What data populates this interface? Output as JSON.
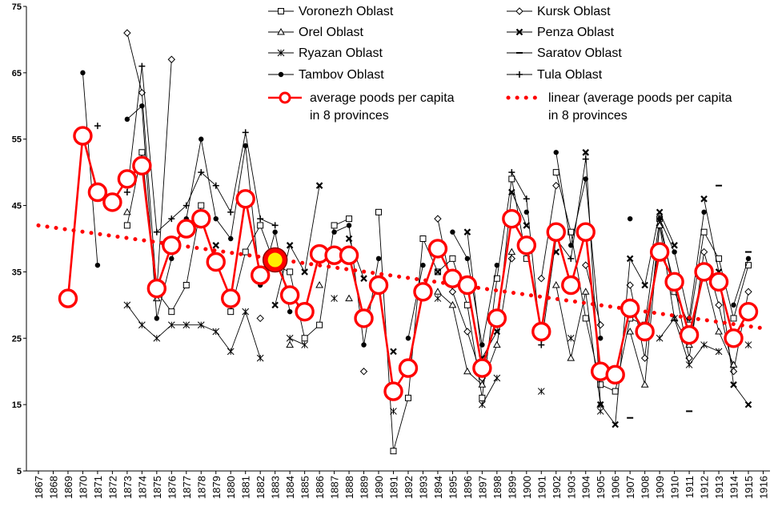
{
  "chart_data": {
    "type": "line",
    "title": "",
    "xlabel": "",
    "ylabel": "",
    "ylim": [
      5,
      75
    ],
    "yticks": [
      5,
      15,
      25,
      35,
      45,
      55,
      65,
      75
    ],
    "grid": false,
    "legend_position": "top",
    "x": [
      1867,
      1868,
      1869,
      1870,
      1871,
      1872,
      1873,
      1874,
      1875,
      1876,
      1877,
      1878,
      1879,
      1880,
      1881,
      1882,
      1883,
      1884,
      1885,
      1886,
      1887,
      1888,
      1889,
      1890,
      1891,
      1892,
      1893,
      1894,
      1895,
      1896,
      1897,
      1898,
      1899,
      1900,
      1901,
      1902,
      1903,
      1904,
      1905,
      1906,
      1907,
      1908,
      1909,
      1910,
      1911,
      1912,
      1913,
      1914,
      1915,
      1916
    ],
    "x_tick_labels": [
      "1867",
      "1868",
      "1869",
      "1870",
      "1871",
      "1872",
      "1873",
      "1874",
      "1875",
      "1876",
      "1877",
      "1878",
      "1879",
      "1880",
      "1881",
      "1882",
      "1883",
      "1884",
      "1885",
      "1886",
      "1887",
      "1888",
      "1889",
      "1890",
      "1891",
      "1892",
      "1893",
      "1894",
      "1895",
      "1896",
      "1897",
      "1898",
      "1899",
      "1900",
      "1901",
      "1902",
      "1903",
      "1904",
      "1905",
      "1906",
      "1907",
      "1908",
      "1909",
      "1910",
      "1911",
      "1912",
      "1913",
      "1914",
      "1915",
      "1916"
    ],
    "series": [
      {
        "name": "Voronezh Oblast",
        "marker": "square-open",
        "color": "#000000",
        "values": [
          null,
          null,
          null,
          null,
          null,
          null,
          42,
          53,
          32,
          29,
          33,
          45,
          null,
          29,
          38,
          42,
          36,
          35,
          25,
          27,
          42,
          43,
          null,
          44,
          8,
          16,
          40,
          35,
          37,
          30,
          16,
          34,
          49,
          37,
          null,
          50,
          41,
          28,
          18,
          17,
          28,
          27,
          43,
          32,
          27,
          41,
          37,
          28,
          36,
          null
        ]
      },
      {
        "name": "Kursk Oblast",
        "marker": "diamond-open",
        "color": "#000000",
        "values": [
          null,
          null,
          null,
          null,
          null,
          null,
          71,
          62,
          32,
          67,
          null,
          null,
          null,
          30,
          null,
          28,
          null,
          null,
          null,
          null,
          null,
          null,
          20,
          null,
          17,
          null,
          null,
          43,
          32,
          26,
          19,
          null,
          37,
          null,
          34,
          48,
          null,
          36,
          27,
          null,
          33,
          22,
          42,
          33,
          22,
          38,
          30,
          20,
          32,
          null
        ]
      },
      {
        "name": "Orel Oblast",
        "marker": "triangle-open",
        "color": "#000000",
        "values": [
          null,
          null,
          null,
          null,
          null,
          null,
          44,
          null,
          31,
          null,
          null,
          null,
          null,
          null,
          null,
          null,
          null,
          24,
          null,
          33,
          null,
          31,
          null,
          null,
          null,
          null,
          null,
          32,
          30,
          20,
          18,
          24,
          38,
          null,
          null,
          33,
          22,
          32,
          15,
          null,
          26,
          18,
          42,
          28,
          24,
          35,
          26,
          21,
          null,
          null
        ]
      },
      {
        "name": "Penza Oblast",
        "marker": "x",
        "color": "#000000",
        "values": [
          null,
          null,
          null,
          null,
          null,
          null,
          null,
          null,
          null,
          null,
          null,
          null,
          39,
          null,
          null,
          null,
          30,
          39,
          35,
          48,
          null,
          40,
          34,
          null,
          23,
          null,
          null,
          35,
          null,
          41,
          22,
          26,
          47,
          42,
          null,
          38,
          null,
          53,
          15,
          12,
          37,
          33,
          44,
          39,
          null,
          46,
          35,
          18,
          15,
          null
        ]
      },
      {
        "name": "Ryazan Oblast",
        "marker": "asterisk",
        "color": "#000000",
        "values": [
          null,
          null,
          null,
          null,
          null,
          null,
          30,
          27,
          25,
          27,
          27,
          27,
          26,
          23,
          29,
          22,
          null,
          25,
          24,
          null,
          31,
          null,
          null,
          null,
          14,
          null,
          null,
          31,
          null,
          null,
          15,
          19,
          null,
          null,
          17,
          null,
          25,
          null,
          14,
          null,
          null,
          null,
          25,
          28,
          21,
          24,
          23,
          null,
          24,
          null
        ]
      },
      {
        "name": "Saratov Oblast",
        "marker": "dash",
        "color": "#000000",
        "values": [
          null,
          null,
          null,
          null,
          null,
          null,
          null,
          null,
          null,
          null,
          null,
          null,
          null,
          null,
          null,
          null,
          null,
          null,
          null,
          null,
          null,
          null,
          null,
          null,
          null,
          null,
          null,
          null,
          null,
          null,
          null,
          null,
          null,
          null,
          null,
          null,
          null,
          null,
          null,
          null,
          13,
          null,
          null,
          null,
          14,
          null,
          48,
          null,
          38,
          null
        ]
      },
      {
        "name": "Tambov Oblast",
        "marker": "circle-filled",
        "color": "#000000",
        "values": [
          null,
          null,
          null,
          65,
          36,
          null,
          58,
          60,
          28,
          37,
          43,
          55,
          43,
          40,
          54,
          33,
          41,
          29,
          null,
          null,
          41,
          42,
          24,
          37,
          null,
          25,
          36,
          null,
          41,
          37,
          24,
          36,
          null,
          44,
          null,
          53,
          39,
          49,
          25,
          null,
          43,
          null,
          43,
          38,
          28,
          44,
          null,
          30,
          37,
          null
        ]
      },
      {
        "name": "Tula Oblast",
        "marker": "plus",
        "color": "#000000",
        "values": [
          null,
          null,
          null,
          null,
          57,
          null,
          47,
          66,
          41,
          43,
          45,
          50,
          48,
          44,
          56,
          43,
          42,
          null,
          null,
          null,
          null,
          null,
          null,
          null,
          null,
          null,
          null,
          null,
          null,
          null,
          null,
          null,
          50,
          46,
          24,
          40,
          37,
          52,
          null,
          null,
          null,
          null,
          null,
          null,
          null,
          null,
          null,
          null,
          null,
          null
        ]
      },
      {
        "name": "average poods per capita in 8 provinces",
        "marker": "circle-open-large",
        "color": "#ff0000",
        "values": [
          null,
          null,
          31,
          55.5,
          47,
          45.5,
          49,
          51,
          32.5,
          39,
          41.5,
          43,
          36.5,
          31,
          46,
          34.5,
          36.8,
          31.5,
          29,
          37.7,
          37.5,
          37.5,
          28,
          33,
          17,
          20.5,
          32,
          38.5,
          34,
          33,
          20.5,
          28,
          43,
          39,
          26,
          41,
          33,
          41,
          20,
          19.5,
          29.5,
          26,
          38,
          33.5,
          25.5,
          35,
          33.5,
          25,
          29,
          null
        ],
        "highlight_x": 1883
      },
      {
        "name": "linear (average poods per capita in 8 provinces",
        "marker": "dotted",
        "color": "#ff0000",
        "start": [
          1867,
          42
        ],
        "end": [
          1916,
          26.5
        ]
      }
    ]
  }
}
